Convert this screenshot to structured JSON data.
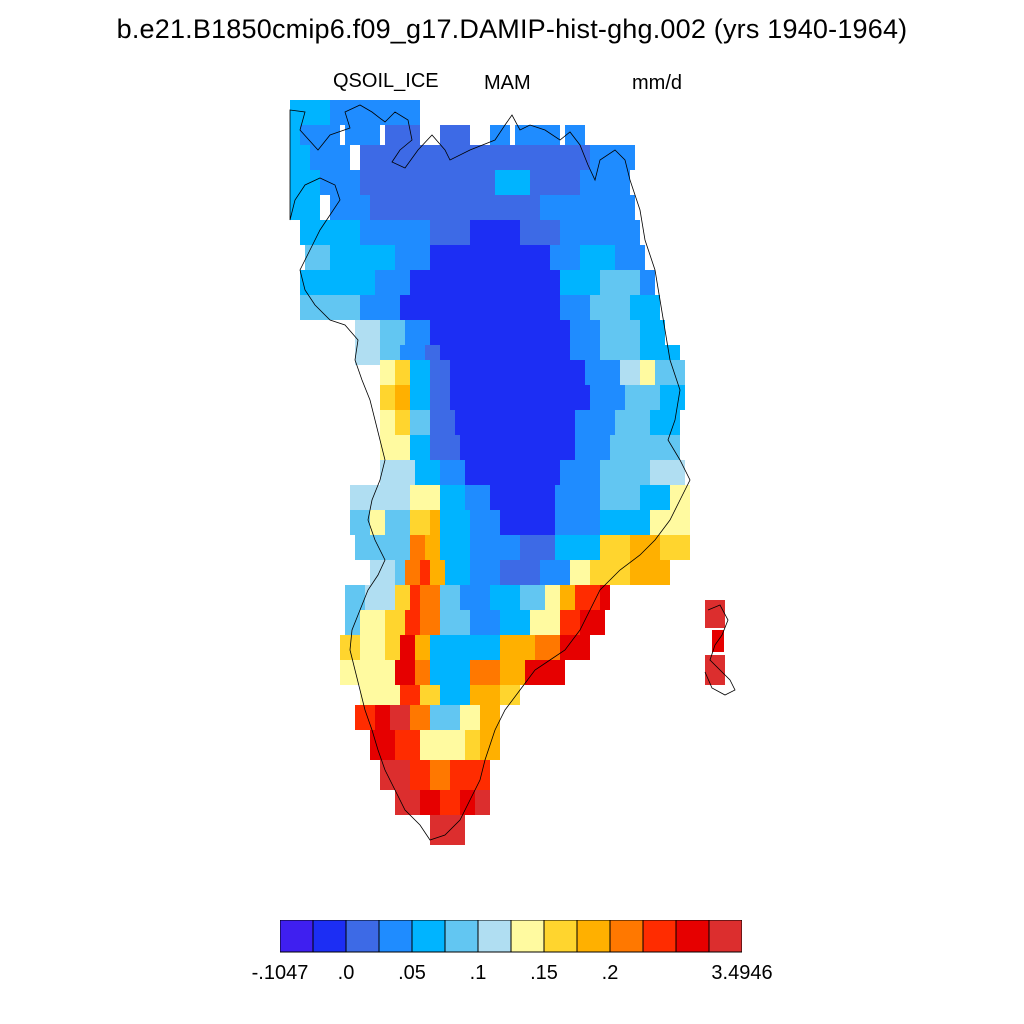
{
  "title": "b.e21.B1850cmip6.f09_g17.DAMIP-hist-ghg.002 (yrs 1940-1964)",
  "variable": "QSOIL_ICE",
  "season": "MAM",
  "units": "mm/d",
  "colorbar": {
    "colors": [
      "#3f1ff0",
      "#1c2ef4",
      "#3d6ae6",
      "#1f8cff",
      "#00b4ff",
      "#62c6f2",
      "#b0def2",
      "#fffaa0",
      "#ffd52e",
      "#ffb000",
      "#ff7800",
      "#ff2c00",
      "#e60000",
      "#dc2e2e"
    ],
    "labels": [
      "-.1047",
      ".0",
      ".05",
      ".1",
      ".15",
      ".2",
      "3.4946"
    ]
  },
  "map_cells": "Greenland ice-sheet gridded field (colour class per cell)"
}
